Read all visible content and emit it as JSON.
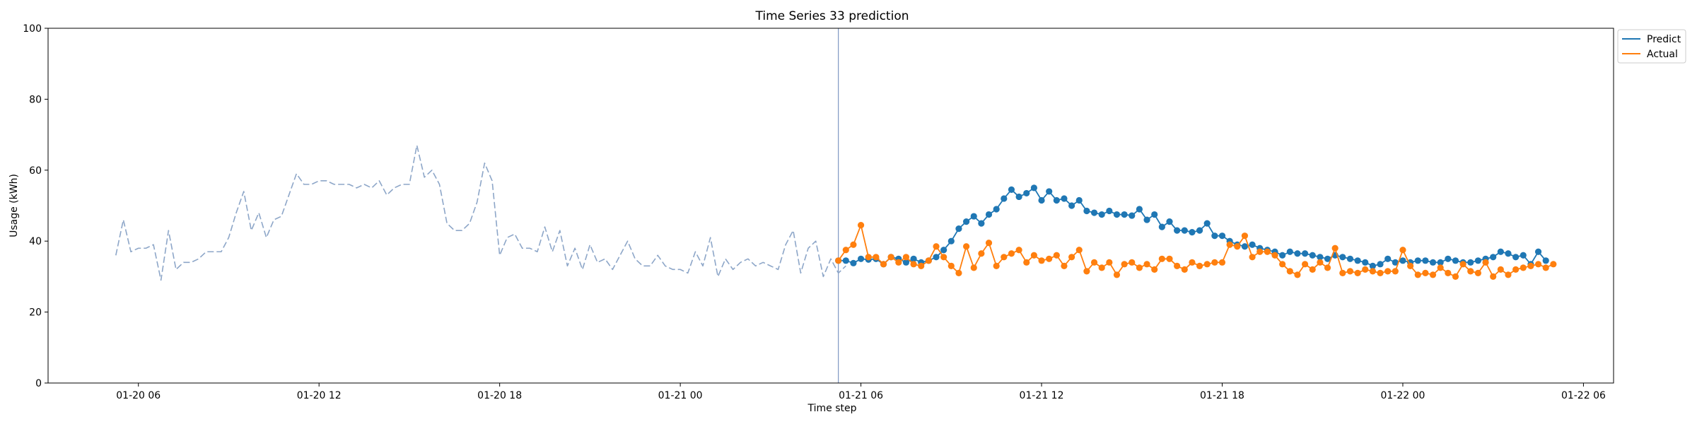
{
  "chart_data": {
    "type": "line",
    "title": "Time Series 33 prediction",
    "xlabel": "Time step",
    "ylabel": "Usage (kWh)",
    "xlim": [
      "2024-01-20T03:00",
      "2024-01-22T07:00"
    ],
    "ylim": [
      0,
      100
    ],
    "x_ticks": [
      {
        "label": "01-20 06",
        "value": "2024-01-20T06:00"
      },
      {
        "label": "01-20 12",
        "value": "2024-01-20T12:00"
      },
      {
        "label": "01-20 18",
        "value": "2024-01-20T18:00"
      },
      {
        "label": "01-21 00",
        "value": "2024-01-21T00:00"
      },
      {
        "label": "01-21 06",
        "value": "2024-01-21T06:00"
      },
      {
        "label": "01-21 12",
        "value": "2024-01-21T12:00"
      },
      {
        "label": "01-21 18",
        "value": "2024-01-21T18:00"
      },
      {
        "label": "01-22 00",
        "value": "2024-01-22T00:00"
      },
      {
        "label": "01-22 06",
        "value": "2024-01-22T06:00"
      }
    ],
    "y_ticks": [
      0,
      20,
      40,
      60,
      80,
      100
    ],
    "grid": false,
    "legend": {
      "position": "upper-right-outside"
    },
    "forecast_start": "2024-01-21T05:15",
    "series": [
      {
        "kind": "history",
        "color": "#8da6c8",
        "style": "dashed",
        "start": "2024-01-20T05:15",
        "step_minutes": 15,
        "values": [
          36,
          46,
          37,
          38,
          38,
          39,
          29,
          43,
          32,
          34,
          34,
          35,
          37,
          37,
          37,
          41,
          48,
          54,
          43,
          48,
          41,
          46,
          47,
          53,
          59,
          56,
          56,
          57,
          57,
          56,
          56,
          56,
          55,
          56,
          55,
          57,
          53,
          55,
          56,
          56,
          67,
          58,
          60,
          56,
          45,
          43,
          43,
          45,
          51,
          62,
          57,
          36,
          41,
          42,
          38,
          38,
          37,
          44,
          37,
          43,
          33,
          38,
          32,
          39,
          34,
          35,
          32,
          36,
          40,
          35,
          33,
          33,
          36,
          33,
          32,
          32,
          31,
          37,
          33,
          41,
          30,
          35,
          32,
          34,
          35,
          33,
          34,
          33,
          32,
          39,
          43,
          31,
          38,
          40,
          30,
          35,
          31,
          33
        ]
      },
      {
        "name": "Predict",
        "color": "#1f77b4",
        "style": "solid",
        "markers": true,
        "start": "2024-01-21T05:15",
        "step_minutes": 15,
        "values": [
          34.5,
          34.5,
          33.8,
          35,
          34.8,
          35,
          33.5,
          35.5,
          35,
          34,
          35,
          34,
          34.5,
          35.5,
          37.5,
          40,
          43.5,
          45.5,
          47,
          45,
          47.5,
          49,
          52,
          54.5,
          52.5,
          53.5,
          55,
          51.5,
          54,
          51.5,
          52,
          50,
          51.5,
          48.5,
          48,
          47.5,
          48.5,
          47.5,
          47.5,
          47.2,
          49,
          46,
          47.5,
          44,
          45.5,
          43,
          43,
          42.5,
          43,
          45,
          41.5,
          41.5,
          40,
          39,
          38.5,
          39,
          38,
          37.5,
          37,
          36,
          37,
          36.5,
          36.5,
          36,
          35.5,
          35,
          36,
          35.5,
          35,
          34.5,
          34,
          33,
          33.5,
          35,
          34,
          34.5,
          34,
          34.5,
          34.5,
          34,
          34,
          35,
          34.5,
          34,
          34,
          34.5,
          35,
          35.5,
          37,
          36.5,
          35.5,
          36,
          33.5,
          37,
          34.5
        ]
      },
      {
        "name": "Actual",
        "color": "#ff7f0e",
        "style": "solid",
        "markers": true,
        "start": "2024-01-21T05:15",
        "step_minutes": 15,
        "values": [
          34.5,
          37.5,
          39,
          44.5,
          35.5,
          35.5,
          33.5,
          35.5,
          34,
          35.5,
          33.5,
          33,
          34.5,
          38.5,
          35.5,
          33,
          31,
          38.5,
          32.5,
          36.5,
          39.5,
          33,
          35.5,
          36.5,
          37.5,
          34,
          36,
          34.5,
          35,
          36,
          33,
          35.5,
          37.5,
          31.5,
          34,
          32.5,
          34,
          30.5,
          33.5,
          34,
          32.5,
          33.5,
          32,
          35,
          35,
          33,
          32,
          34,
          33,
          33.5,
          34,
          34,
          39,
          38.5,
          41.5,
          35.5,
          37,
          37,
          36,
          33.5,
          31.5,
          30.5,
          33.5,
          32,
          34,
          32.5,
          38,
          31,
          31.5,
          31,
          32,
          31.5,
          31,
          31.5,
          31.5,
          37.5,
          33,
          30.5,
          31,
          30.5,
          32.5,
          31,
          30,
          33.5,
          31.5,
          31,
          34,
          30,
          32,
          30.5,
          32,
          32.5,
          33,
          33.5,
          32.5,
          33.5
        ]
      }
    ]
  }
}
